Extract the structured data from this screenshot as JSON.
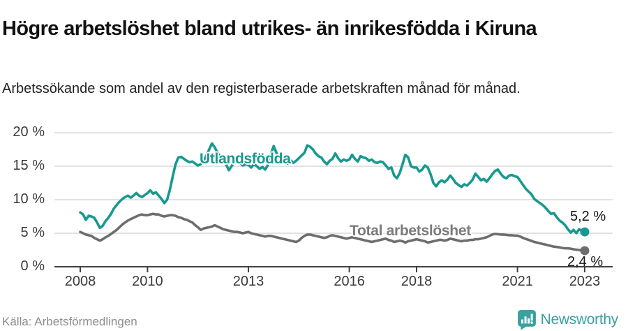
{
  "title": "Högre arbetslöshet bland utrikes- än inrikesfödda i Kiruna",
  "subtitle": "Arbetssökande som andel av den registerbaserade arbetskraften månad för månad.",
  "source": "Källa: Arbetsförmedlingen",
  "branding": {
    "name": "Newsworthy",
    "logo_color": "#3aa0a0",
    "logo_icon": "bar-chart-speech-bubble"
  },
  "colors": {
    "utlandsfodda_line": "#17998f",
    "total_line": "#6d6d6d",
    "grid": "#d9d9d9",
    "axis": "#414141",
    "title_text": "#111111",
    "tick_text": "#3a3a3a",
    "source_text": "#8c8c8c"
  },
  "chart_data": {
    "type": "line",
    "title": "Högre arbetslöshet bland utrikes- än inrikesfödda i Kiruna",
    "xlabel": "",
    "ylabel": "",
    "grid": "horizontal",
    "legend_position": "inline-labels",
    "x_axis": {
      "range_years": [
        2008,
        2023
      ],
      "ticks": [
        {
          "value": 2008,
          "label": "2008"
        },
        {
          "value": 2010,
          "label": "2010"
        },
        {
          "value": 2013,
          "label": "2013"
        },
        {
          "value": 2016,
          "label": "2016"
        },
        {
          "value": 2018,
          "label": "2018"
        },
        {
          "value": 2021,
          "label": "2021"
        },
        {
          "value": 2023,
          "label": "2023"
        }
      ]
    },
    "y_axis": {
      "range": [
        0,
        20
      ],
      "unit": "%",
      "ticks": [
        {
          "value": 0,
          "label": "0 %"
        },
        {
          "value": 5,
          "label": "5 %"
        },
        {
          "value": 10,
          "label": "10 %"
        },
        {
          "value": 15,
          "label": "15 %"
        },
        {
          "value": 20,
          "label": "20 %"
        }
      ]
    },
    "series": [
      {
        "name": "Utlandsfödda",
        "color": "#17998f",
        "label_color": "#17998f",
        "end_label": "5,2 %",
        "end_value": 5.2,
        "start_year": 2008,
        "step_months": 1,
        "values": [
          8.1,
          7.8,
          7.0,
          7.6,
          7.5,
          7.3,
          6.6,
          5.8,
          6.1,
          6.8,
          7.3,
          7.9,
          8.7,
          9.2,
          9.7,
          10.1,
          10.4,
          10.6,
          10.3,
          10.6,
          11.0,
          10.6,
          10.4,
          10.7,
          11.0,
          11.4,
          10.9,
          11.1,
          10.6,
          10.1,
          9.5,
          10.0,
          11.5,
          13.5,
          15.3,
          16.3,
          16.4,
          16.1,
          15.8,
          15.6,
          15.7,
          15.4,
          15.1,
          15.3,
          15.8,
          16.6,
          17.5,
          18.4,
          17.8,
          17.0,
          16.4,
          16.0,
          15.3,
          14.4,
          15.0,
          15.7,
          15.9,
          15.5,
          15.1,
          15.3,
          15.2,
          14.8,
          15.3,
          15.0,
          14.6,
          14.9,
          14.5,
          15.2,
          16.8,
          18.0,
          17.0,
          16.2,
          15.8,
          15.5,
          15.4,
          15.9,
          15.5,
          15.8,
          16.2,
          16.6,
          17.0,
          18.1,
          17.9,
          17.5,
          16.9,
          16.5,
          16.3,
          15.7,
          15.3,
          15.8,
          16.1,
          16.9,
          16.2,
          15.7,
          16.0,
          15.8,
          16.0,
          16.7,
          16.1,
          15.7,
          16.5,
          16.3,
          16.2,
          15.8,
          16.0,
          15.6,
          15.5,
          15.7,
          15.6,
          15.1,
          14.6,
          14.8,
          13.6,
          13.2,
          14.0,
          15.3,
          16.7,
          16.3,
          15.0,
          14.8,
          14.8,
          14.2,
          14.5,
          15.1,
          14.8,
          13.8,
          12.5,
          12.0,
          12.6,
          12.9,
          12.6,
          13.0,
          13.6,
          13.1,
          12.5,
          12.2,
          11.9,
          12.3,
          12.1,
          12.5,
          13.0,
          13.9,
          13.4,
          12.9,
          13.1,
          12.7,
          13.2,
          13.8,
          14.3,
          14.5,
          13.9,
          13.4,
          13.2,
          13.6,
          13.7,
          13.5,
          13.4,
          12.8,
          12.2,
          11.6,
          11.2,
          10.8,
          10.1,
          9.8,
          9.5,
          9.2,
          8.8,
          8.3,
          7.9,
          8.0,
          7.4,
          6.9,
          6.6,
          6.2,
          5.6,
          5.1,
          5.5,
          5.0,
          5.6,
          5.3,
          5.2
        ]
      },
      {
        "name": "Total arbetslöshet",
        "color": "#6d6d6d",
        "label_color": "#7b7b7b",
        "end_label": "2,4 %",
        "end_value": 2.4,
        "start_year": 2008,
        "step_months": 1,
        "values": [
          5.2,
          5.0,
          4.8,
          4.7,
          4.6,
          4.3,
          4.1,
          3.9,
          4.1,
          4.4,
          4.6,
          4.9,
          5.2,
          5.5,
          5.9,
          6.3,
          6.6,
          6.9,
          7.1,
          7.3,
          7.5,
          7.7,
          7.8,
          7.7,
          7.7,
          7.8,
          7.9,
          7.8,
          7.8,
          7.6,
          7.5,
          7.6,
          7.7,
          7.7,
          7.6,
          7.4,
          7.3,
          7.1,
          7.0,
          6.8,
          6.6,
          6.2,
          5.9,
          5.5,
          5.7,
          5.8,
          5.9,
          6.0,
          6.2,
          6.0,
          5.8,
          5.6,
          5.5,
          5.4,
          5.3,
          5.2,
          5.2,
          5.1,
          5.0,
          5.1,
          5.2,
          5.0,
          4.9,
          4.8,
          4.7,
          4.6,
          4.5,
          4.6,
          4.6,
          4.5,
          4.4,
          4.3,
          4.2,
          4.1,
          4.0,
          3.9,
          3.8,
          3.7,
          3.9,
          4.3,
          4.6,
          4.8,
          4.8,
          4.7,
          4.6,
          4.5,
          4.4,
          4.3,
          4.4,
          4.6,
          4.7,
          4.6,
          4.5,
          4.4,
          4.3,
          4.2,
          4.3,
          4.4,
          4.3,
          4.2,
          4.1,
          4.0,
          3.9,
          3.8,
          3.7,
          3.8,
          3.9,
          4.0,
          4.1,
          4.2,
          4.0,
          3.9,
          3.7,
          3.8,
          3.9,
          3.8,
          3.6,
          3.8,
          3.9,
          4.0,
          4.1,
          4.0,
          3.9,
          3.8,
          3.6,
          3.7,
          3.8,
          3.9,
          4.0,
          4.0,
          3.9,
          4.0,
          4.2,
          4.1,
          4.0,
          3.9,
          3.8,
          3.9,
          3.9,
          4.0,
          4.0,
          4.1,
          4.1,
          4.2,
          4.3,
          4.4,
          4.6,
          4.8,
          4.9,
          4.85,
          4.8,
          4.8,
          4.75,
          4.7,
          4.7,
          4.65,
          4.65,
          4.5,
          4.3,
          4.15,
          4.0,
          3.85,
          3.7,
          3.6,
          3.5,
          3.4,
          3.3,
          3.2,
          3.1,
          3.0,
          2.95,
          2.9,
          2.8,
          2.75,
          2.75,
          2.7,
          2.6,
          2.55,
          2.5,
          2.45,
          2.4
        ]
      }
    ]
  }
}
